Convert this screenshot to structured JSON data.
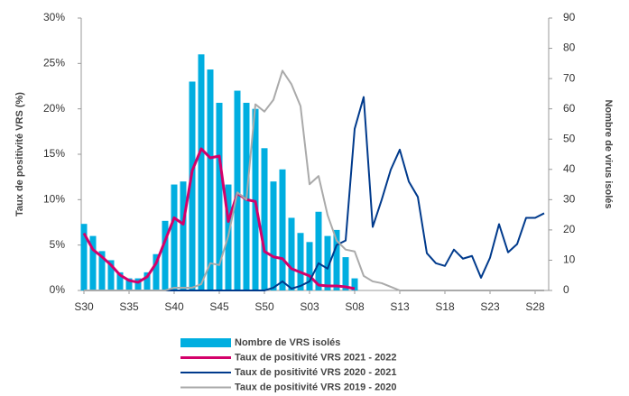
{
  "chart_data": {
    "type": "combo",
    "y_label": "Taux de positivité VRS (%)",
    "y2_label": "Nombre de virus isolés",
    "categories": [
      "S30",
      null,
      null,
      null,
      null,
      "S35",
      null,
      null,
      null,
      null,
      "S40",
      null,
      null,
      null,
      null,
      "S45",
      null,
      null,
      null,
      null,
      "S50",
      null,
      null,
      null,
      null,
      "S03",
      null,
      null,
      null,
      null,
      "S08",
      null,
      null,
      null,
      null,
      "S13",
      null,
      null,
      null,
      null,
      "S18",
      null,
      null,
      null,
      null,
      "S23",
      null,
      null,
      null,
      null,
      "S28",
      null
    ],
    "ylim": [
      0,
      30
    ],
    "yticks": [
      {
        "value": 0,
        "label": "0%"
      },
      {
        "value": 5,
        "label": "5%"
      },
      {
        "value": 10,
        "label": "10%"
      },
      {
        "value": 15,
        "label": "15%"
      },
      {
        "value": 20,
        "label": "20%"
      },
      {
        "value": 25,
        "label": "25%"
      },
      {
        "value": 30,
        "label": "30%"
      }
    ],
    "y2lim": [
      0,
      90
    ],
    "y2ticks": [
      0,
      10,
      20,
      30,
      40,
      50,
      60,
      70,
      80,
      90
    ],
    "series": [
      {
        "name": "Nombre de VRS isolés",
        "type": "bar",
        "axis": "y2",
        "color": "#00aee0",
        "values": [
          22,
          18,
          13,
          10,
          6,
          4,
          4,
          6,
          12,
          23,
          35,
          36,
          69,
          78,
          73,
          62,
          35,
          66,
          62,
          60,
          47,
          36,
          40,
          24,
          19,
          16,
          26,
          18,
          20,
          11,
          4,
          null,
          null,
          null,
          null,
          null,
          null,
          null,
          null,
          null,
          null,
          null,
          null,
          null,
          null,
          null,
          null,
          null,
          null,
          null,
          null,
          null
        ]
      },
      {
        "name": "Taux de positivité VRS 2021 - 2022",
        "type": "line",
        "color": "#d4006a",
        "values": [
          6.3,
          4.5,
          3.7,
          2.8,
          1.7,
          1.1,
          0.9,
          1.5,
          3.0,
          5.5,
          8.0,
          7.3,
          13.2,
          15.6,
          14.6,
          14.8,
          7.6,
          10.7,
          10.0,
          9.8,
          4.3,
          3.7,
          3.5,
          2.4,
          2.0,
          1.6,
          0.6,
          0.5,
          0.5,
          0.4,
          0.2,
          null,
          null,
          null,
          null,
          null,
          null,
          null,
          null,
          null,
          null,
          null,
          null,
          null,
          null,
          null,
          null,
          null,
          null,
          null,
          null,
          null
        ]
      },
      {
        "name": "Taux de positivité VRS 2020 - 2021",
        "type": "line",
        "color": "#003a8c",
        "values": [
          0,
          0,
          0,
          0,
          0,
          0,
          0,
          0,
          0,
          0,
          0,
          0,
          0,
          0,
          0,
          0,
          0,
          0,
          0,
          0,
          0,
          0.3,
          1.0,
          0.2,
          0.5,
          1.0,
          3.0,
          2.4,
          5.0,
          5.5,
          17.8,
          21.3,
          7.0,
          10.0,
          13.3,
          15.5,
          12.0,
          10.3,
          4.1,
          3.0,
          2.7,
          4.5,
          3.5,
          3.8,
          1.4,
          3.6,
          7.3,
          4.2,
          5.1,
          8.0,
          8.0,
          8.5
        ]
      },
      {
        "name": "Taux de positivité VRS 2019 - 2020",
        "type": "line",
        "color": "#aaaaaa",
        "values": [
          0,
          0,
          0,
          0,
          0,
          0,
          0,
          0,
          0,
          0,
          0.3,
          0.3,
          0.3,
          0.7,
          3.0,
          2.8,
          6.0,
          10.8,
          10.0,
          20.5,
          19.7,
          21.0,
          24.2,
          22.7,
          20.3,
          11.7,
          12.6,
          8.3,
          5.5,
          4.5,
          4.3,
          1.6,
          1.0,
          0.8,
          0.4,
          0,
          0,
          0,
          0,
          0,
          0,
          0,
          0,
          0,
          0,
          0,
          0,
          0,
          0,
          0,
          0,
          0
        ]
      }
    ]
  }
}
